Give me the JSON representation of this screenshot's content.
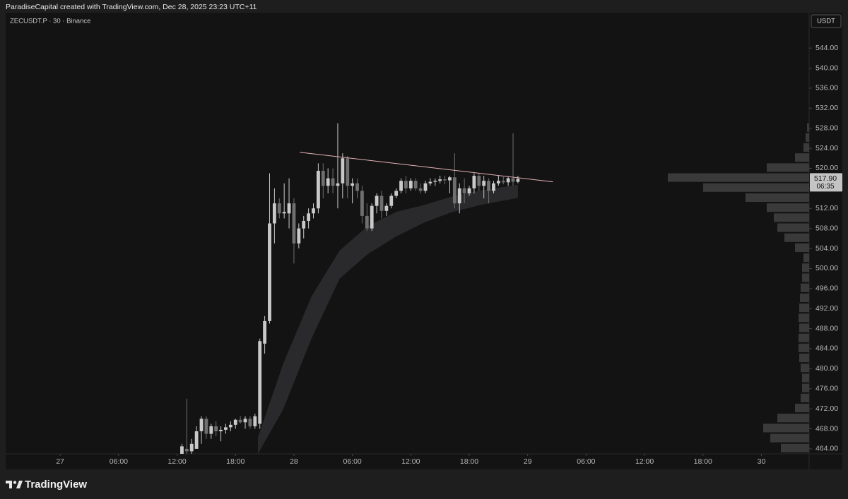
{
  "header": {
    "credit": "ParadiseCapital created with TradingView.com, Dec 28, 2025 23:23 UTC+11",
    "symbol": "ZECUSDT.P · 30 · Binance",
    "currency": "USDT"
  },
  "footer": {
    "brand": "TradingView"
  },
  "chart_data": {
    "type": "candlestick",
    "up_color": "#c9c9c9",
    "down_color": "#6f6f6f",
    "x": [
      12.5,
      13,
      13.5,
      14,
      14.5,
      15,
      15.5,
      16,
      16.5,
      17,
      17.5,
      18,
      18.5,
      19,
      19.5,
      20,
      20.5,
      21,
      21.5,
      22,
      22.5,
      23,
      23.5,
      24,
      24.5,
      25,
      25.5,
      26,
      26.5,
      27,
      27.5,
      28,
      28.5,
      29,
      29.5,
      30,
      30.5,
      31,
      31.5,
      32,
      32.5,
      33,
      33.5,
      34,
      34.5,
      35,
      35.5,
      36,
      36.5,
      37,
      37.5,
      38,
      38.5,
      39,
      39.5,
      40,
      40.5,
      41,
      41.5,
      42,
      42.5,
      43,
      43.5,
      44,
      44.5,
      45,
      45.5,
      46,
      46.5,
      47
    ],
    "open": [
      463,
      464,
      463.5,
      464,
      467.5,
      470,
      467,
      468.5,
      467.5,
      467.8,
      468.3,
      468.8,
      469.8,
      469.3,
      470,
      468.5,
      469,
      485,
      489.5,
      509,
      513,
      511,
      511,
      513,
      505,
      508,
      509.5,
      511,
      512,
      519.5,
      516.5,
      518,
      516.5,
      517,
      522,
      516.5,
      517,
      515.5,
      510.5,
      508,
      512.5,
      514.5,
      511.5,
      512.5,
      514.5,
      515.5,
      517.5,
      516,
      517.5,
      516,
      515.5,
      517,
      517.3,
      517.5,
      517.8,
      517.6,
      518.2,
      513,
      516,
      515,
      516,
      518.5,
      516.5,
      517.5,
      515.5,
      517,
      517.5,
      517.2,
      518,
      517.3
    ],
    "high": [
      465,
      474,
      466,
      468.5,
      470.5,
      470.5,
      469,
      469.5,
      468.5,
      469,
      469.5,
      470,
      470.5,
      470.5,
      470.5,
      471,
      486,
      490.5,
      519,
      516,
      514,
      517,
      518,
      514,
      509,
      510.5,
      512,
      513,
      521,
      521,
      520,
      520,
      529,
      523,
      522.5,
      518,
      518,
      516.5,
      513,
      513,
      515,
      515.5,
      513,
      515,
      516,
      518,
      518.5,
      518,
      518,
      517,
      517.5,
      518,
      518,
      518.5,
      518.5,
      518.5,
      523,
      517,
      518,
      516.5,
      519,
      519,
      518.5,
      518,
      517.5,
      518.5,
      518.3,
      518.3,
      527,
      518.5
    ],
    "low": [
      462,
      462,
      462,
      464,
      465,
      466,
      466,
      466.5,
      465.5,
      467,
      467.5,
      468,
      469,
      468,
      468,
      468,
      468,
      483,
      489,
      505,
      510,
      510,
      508,
      501,
      504,
      506,
      508,
      510,
      511,
      514,
      515,
      515,
      512,
      514,
      514,
      513,
      514,
      509,
      507.5,
      507.5,
      511,
      510,
      510.5,
      512,
      514,
      515,
      515,
      515.5,
      515.5,
      515,
      515,
      516.5,
      516.5,
      517,
      516.8,
      515,
      512,
      511,
      513,
      514.5,
      515,
      515.5,
      514,
      513,
      515,
      516.5,
      516.8,
      516.5,
      516.5,
      517
    ],
    "close": [
      464.5,
      463.5,
      465,
      467.5,
      470,
      467,
      468.5,
      467.5,
      467.8,
      468.3,
      468.8,
      469.8,
      469.3,
      470,
      468.5,
      470.5,
      485.5,
      489.5,
      509,
      513,
      511,
      511.3,
      513,
      505,
      508,
      509.5,
      511,
      512,
      519.5,
      516.5,
      518,
      516.5,
      517,
      522,
      516.5,
      517,
      515.5,
      510.5,
      508,
      512.5,
      514.5,
      511.5,
      512.5,
      514.5,
      515.5,
      517.5,
      516,
      517.5,
      516,
      515.5,
      517,
      517.3,
      517.5,
      517.8,
      517.6,
      518.2,
      513,
      516,
      515,
      516,
      518.5,
      516.5,
      517.5,
      515.5,
      517,
      517.5,
      517.2,
      518,
      517.3,
      517.9
    ],
    "ribbon": {
      "color": "#2a2a2c",
      "x": [
        20.3,
        22.9,
        25.8,
        28.7,
        31.6,
        34.5,
        37.4,
        40.3,
        43.2,
        47.0
      ],
      "upper": [
        466.3,
        481.0,
        494.4,
        503.6,
        508.5,
        511.3,
        512.7,
        514.4,
        515.6,
        516.7
      ],
      "lower": [
        463,
        471.9,
        486.0,
        498.0,
        502.9,
        506.4,
        509.2,
        511.3,
        512.7,
        514.1
      ]
    },
    "trendline": {
      "color": "#e6b3b8",
      "x": [
        24.6,
        50.6
      ],
      "y": [
        523.2,
        517.3
      ]
    },
    "volume_profile": {
      "color": "#3a3a3a",
      "levels": [
        464,
        466,
        468,
        470,
        472,
        474,
        476,
        478,
        480,
        482,
        484,
        486,
        488,
        490,
        492,
        494,
        496,
        498,
        500,
        502,
        504,
        506,
        508,
        510,
        512,
        514,
        516,
        518,
        520,
        522,
        524,
        526,
        528
      ],
      "values": [
        40,
        55,
        65,
        45,
        20,
        12,
        10,
        10,
        12,
        14,
        15,
        15,
        14,
        15,
        14,
        13,
        12,
        10,
        10,
        8,
        20,
        35,
        45,
        50,
        60,
        90,
        150,
        200,
        60,
        20,
        8,
        5,
        3
      ]
    },
    "last_price": {
      "value": 517.9,
      "label": "517.90"
    },
    "countdown": "06:35",
    "xlim": [
      -5.6,
      76.9
    ],
    "xticks": [
      {
        "value": 0,
        "label": "27"
      },
      {
        "value": 6,
        "label": "06:00"
      },
      {
        "value": 12,
        "label": "12:00"
      },
      {
        "value": 18,
        "label": "18:00"
      },
      {
        "value": 24,
        "label": "28"
      },
      {
        "value": 30,
        "label": "06:00"
      },
      {
        "value": 36,
        "label": "12:00"
      },
      {
        "value": 42,
        "label": "18:00"
      },
      {
        "value": 48,
        "label": "29"
      },
      {
        "value": 54,
        "label": "06:00"
      },
      {
        "value": 60,
        "label": "12:00"
      },
      {
        "value": 66,
        "label": "18:00"
      },
      {
        "value": 72,
        "label": "30"
      }
    ],
    "ylim": [
      463.0,
      550.5
    ],
    "yticks": [
      {
        "value": 464,
        "label": "464.00"
      },
      {
        "value": 468,
        "label": "468.00"
      },
      {
        "value": 472,
        "label": "472.00"
      },
      {
        "value": 476,
        "label": "476.00"
      },
      {
        "value": 480,
        "label": "480.00"
      },
      {
        "value": 484,
        "label": "484.00"
      },
      {
        "value": 488,
        "label": "488.00"
      },
      {
        "value": 492,
        "label": "492.00"
      },
      {
        "value": 496,
        "label": "496.00"
      },
      {
        "value": 500,
        "label": "500.00"
      },
      {
        "value": 504,
        "label": "504.00"
      },
      {
        "value": 508,
        "label": "508.00"
      },
      {
        "value": 512,
        "label": "512.00"
      },
      {
        "value": 516,
        "label": "516.00"
      },
      {
        "value": 520,
        "label": "520.00"
      },
      {
        "value": 524,
        "label": "524.00"
      },
      {
        "value": 528,
        "label": "528.00"
      },
      {
        "value": 532,
        "label": "532.00"
      },
      {
        "value": 536,
        "label": "536.00"
      },
      {
        "value": 540,
        "label": "540.00"
      },
      {
        "value": 544,
        "label": "544.00"
      }
    ]
  }
}
